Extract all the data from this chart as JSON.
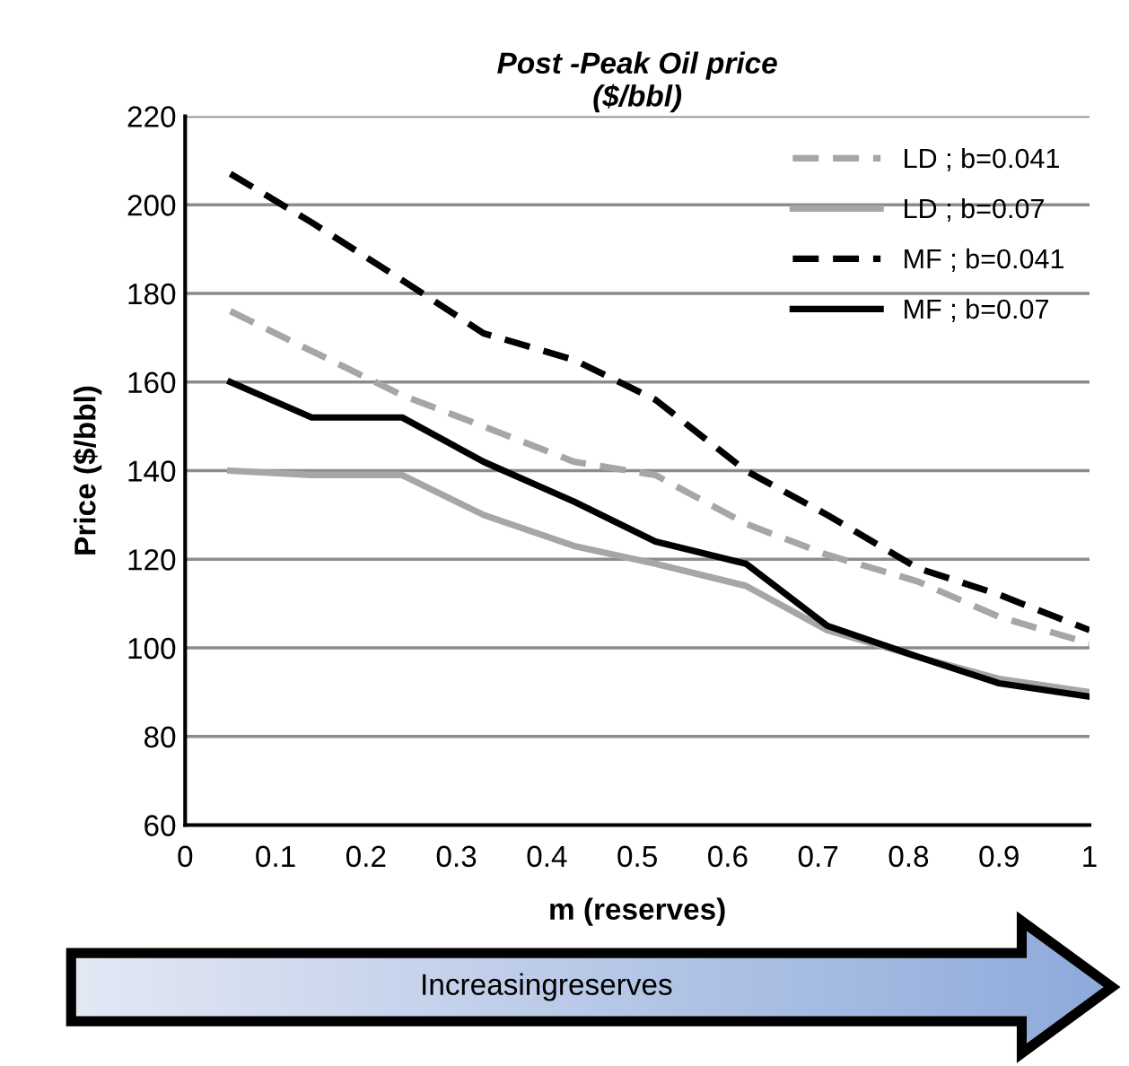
{
  "chart_data": {
    "type": "line",
    "title": "Post -Peak Oil price\n($/bbl)",
    "xlabel": "m (reserves)",
    "ylabel": "Price ($/bbl)",
    "x": [
      0.05,
      0.14,
      0.24,
      0.33,
      0.43,
      0.52,
      0.62,
      0.71,
      0.81,
      0.9,
      1.0
    ],
    "series": [
      {
        "name": "LD ; b=0.041",
        "color": "#a6a6a6",
        "line_style": "dashed",
        "values": [
          176,
          167,
          157,
          150,
          142,
          139,
          128,
          121,
          115,
          107,
          101
        ]
      },
      {
        "name": "LD ; b=0.07",
        "color": "#a6a6a6",
        "line_style": "solid",
        "values": [
          140,
          139,
          139,
          130,
          123,
          119,
          114,
          104,
          98,
          93,
          90
        ]
      },
      {
        "name": "MF ; b=0.041",
        "color": "#000000",
        "line_style": "dashed",
        "values": [
          207,
          196,
          183,
          171,
          165,
          156,
          140,
          130,
          118,
          112,
          104
        ]
      },
      {
        "name": "MF ; b=0.07",
        "color": "#000000",
        "line_style": "solid",
        "values": [
          160,
          152,
          152,
          142,
          133,
          124,
          119,
          105,
          98,
          92,
          89
        ]
      }
    ],
    "xlim": [
      0,
      1
    ],
    "xticks": [
      0,
      0.1,
      0.2,
      0.3,
      0.4,
      0.5,
      0.6,
      0.7,
      0.8,
      0.9,
      1
    ],
    "ylim": [
      60,
      220
    ],
    "yticks": [
      60,
      80,
      100,
      120,
      140,
      160,
      180,
      200,
      220
    ],
    "grid": "y",
    "legend": "top right",
    "annotations": [
      "Increasingreserves"
    ]
  }
}
